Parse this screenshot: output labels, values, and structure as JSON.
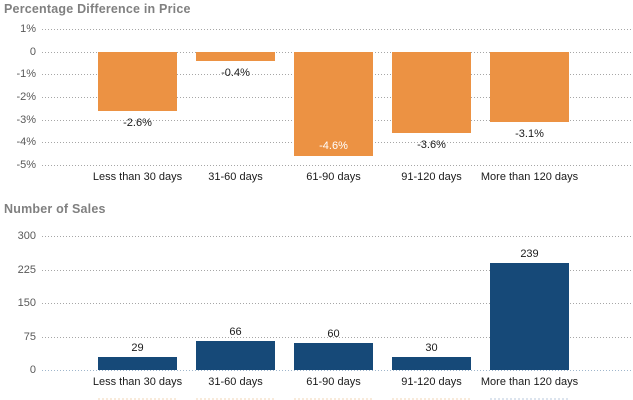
{
  "page": {
    "background": "#ffffff"
  },
  "colors": {
    "title_text": "#808080",
    "axis_text": "#595959",
    "label_text": "#1a1a1a",
    "gridline": "#a6a6a6",
    "baseline_blue": "#9fb6cc",
    "bar_orange": "#ec9243",
    "bar_navy": "#164978"
  },
  "chart_data": [
    {
      "type": "bar",
      "title": "Percentage Difference in Price",
      "categories": [
        "Less than 30 days",
        "31-60 days",
        "61-90 days",
        "91-120 days",
        "More than 120 days"
      ],
      "values": [
        -2.6,
        -0.4,
        -4.6,
        -3.6,
        -3.1
      ],
      "value_labels": [
        "-2.6%",
        "-0.4%",
        "-4.6%",
        "-3.6%",
        "-3.1%"
      ],
      "yticks": [
        1,
        0,
        -1,
        -2,
        -3,
        -4,
        -5
      ],
      "ytick_labels": [
        "1%",
        "0",
        "-1%",
        "-2%",
        "-3%",
        "-4%",
        "-5%"
      ],
      "ylim": [
        -5,
        1
      ],
      "xlabel": "",
      "ylabel": "",
      "grid": true,
      "legend": false,
      "bar_color": "#ec9243",
      "inside_label_indices": [
        2
      ],
      "inside_label_color": "#ffffff"
    },
    {
      "type": "bar",
      "title": "Number of Sales",
      "categories": [
        "Less than 30 days",
        "31-60 days",
        "61-90 days",
        "91-120 days",
        "More than 120 days"
      ],
      "values": [
        29,
        66,
        60,
        30,
        239
      ],
      "value_labels": [
        "29",
        "66",
        "60",
        "30",
        "239"
      ],
      "yticks": [
        300,
        225,
        150,
        75,
        0
      ],
      "ytick_labels": [
        "300",
        "225",
        "150",
        "75",
        "0"
      ],
      "ylim": [
        0,
        300
      ],
      "xlabel": "",
      "ylabel": "",
      "grid": true,
      "legend": false,
      "bar_color": "#164978",
      "inside_label_indices": [],
      "inside_label_color": "#ffffff"
    }
  ]
}
